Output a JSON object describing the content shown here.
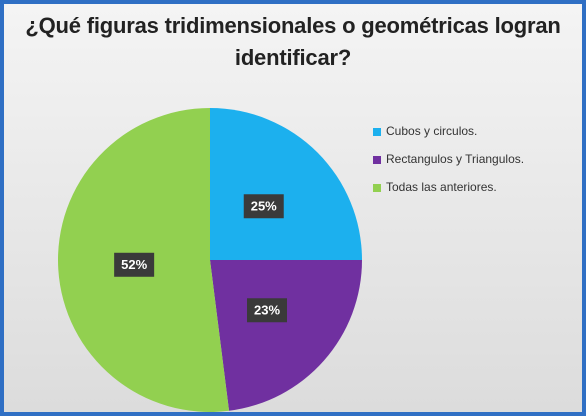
{
  "chart_data": {
    "type": "pie",
    "title": "¿Qué figuras tridimensionales o geométricas logran identificar?",
    "categories": [
      "Cubos y circulos.",
      "Rectangulos y Triangulos.",
      "Todas las anteriores."
    ],
    "values": [
      25,
      23,
      52
    ],
    "value_labels": [
      "25%",
      "23%",
      "52%"
    ],
    "colors": [
      "#1cb0ee",
      "#7030a0",
      "#92d050"
    ],
    "legend": "right"
  }
}
